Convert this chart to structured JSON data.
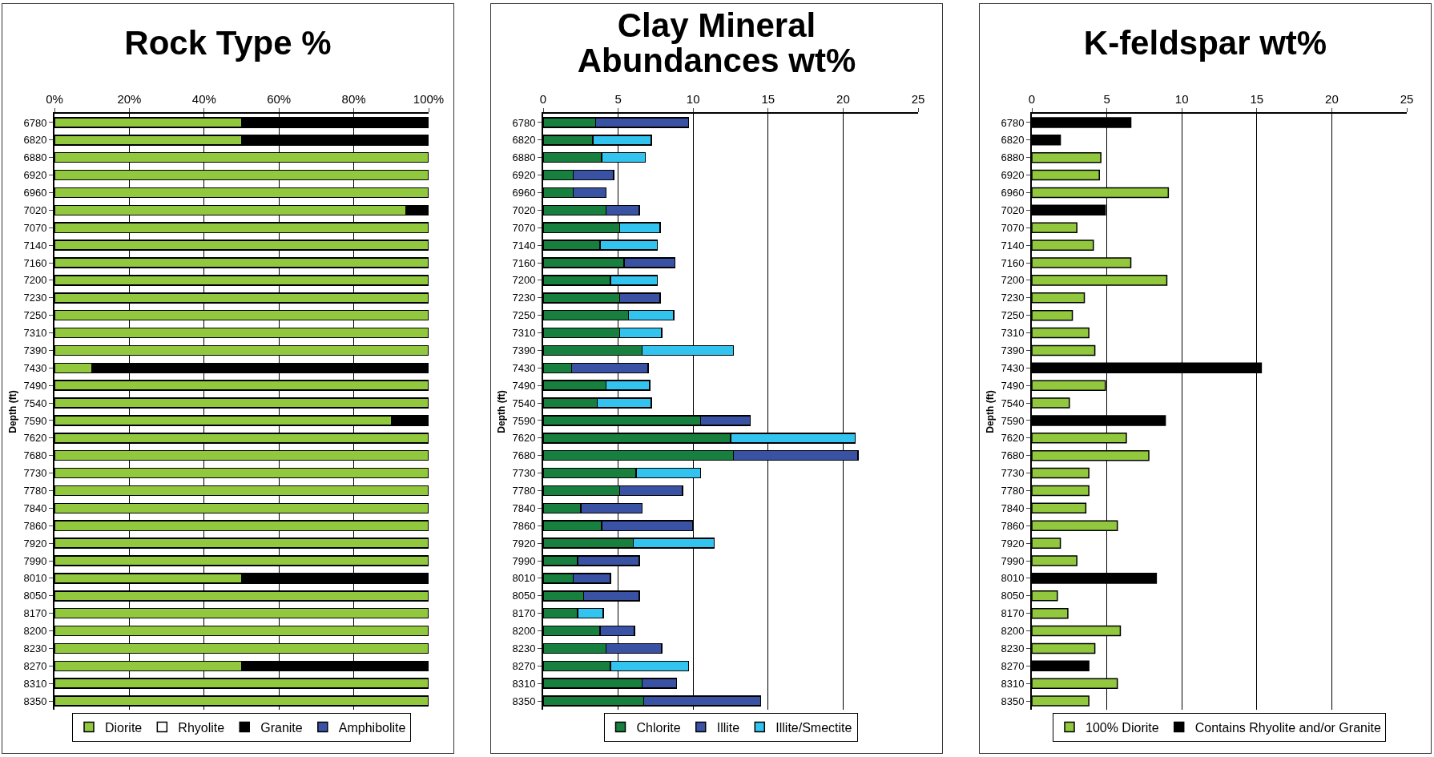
{
  "chart_data": [
    {
      "type": "bar",
      "title": "Rock Type %",
      "ylabel": "Depth (ft)",
      "orientation": "horizontal",
      "stacked": true,
      "grid": "x",
      "legend": "bottom",
      "categories": [
        "6780",
        "6820",
        "6880",
        "6920",
        "6960",
        "7020",
        "7070",
        "7140",
        "7160",
        "7200",
        "7230",
        "7250",
        "7310",
        "7390",
        "7430",
        "7490",
        "7540",
        "7590",
        "7620",
        "7680",
        "7730",
        "7780",
        "7840",
        "7860",
        "7920",
        "7990",
        "8010",
        "8050",
        "8170",
        "8200",
        "8230",
        "8270",
        "8310",
        "8350"
      ],
      "xlim": [
        0,
        100
      ],
      "xticks": [
        {
          "value": 0,
          "label": "0%"
        },
        {
          "value": 20,
          "label": "20%"
        },
        {
          "value": 40,
          "label": "40%"
        },
        {
          "value": 60,
          "label": "60%"
        },
        {
          "value": 80,
          "label": "80%"
        },
        {
          "value": 100,
          "label": "100%"
        }
      ],
      "series": [
        {
          "name": "Diorite",
          "color": "#92c83e",
          "values": [
            50,
            50,
            100,
            100,
            100,
            94,
            100,
            100,
            100,
            100,
            100,
            100,
            100,
            100,
            10,
            100,
            100,
            90,
            100,
            100,
            100,
            100,
            100,
            100,
            100,
            100,
            50,
            100,
            100,
            100,
            100,
            50,
            100,
            100
          ]
        },
        {
          "name": "Rhyolite",
          "color": "#ffffff",
          "values": [
            0,
            0,
            0,
            0,
            0,
            0,
            0,
            0,
            0,
            0,
            0,
            0,
            0,
            0,
            0,
            0,
            0,
            0,
            0,
            0,
            0,
            0,
            0,
            0,
            0,
            0,
            0,
            0,
            0,
            0,
            0,
            0,
            0,
            0
          ]
        },
        {
          "name": "Granite",
          "color": "#000000",
          "values": [
            50,
            50,
            0,
            0,
            0,
            6,
            0,
            0,
            0,
            0,
            0,
            0,
            0,
            0,
            90,
            0,
            0,
            10,
            0,
            0,
            0,
            0,
            0,
            0,
            0,
            0,
            50,
            0,
            0,
            0,
            0,
            50,
            0,
            0
          ]
        },
        {
          "name": "Amphibolite",
          "color": "#3a52a4",
          "values": [
            0,
            0,
            0,
            0,
            0,
            0,
            0,
            0,
            0,
            0,
            0,
            0,
            0,
            0,
            0,
            0,
            0,
            0,
            0,
            0,
            0,
            0,
            0,
            0,
            0,
            0,
            0,
            0,
            0,
            0,
            0,
            0,
            0,
            0
          ]
        }
      ]
    },
    {
      "type": "bar",
      "title": "Clay Mineral Abundances wt%",
      "ylabel": "Depth (ft)",
      "orientation": "horizontal",
      "stacked": true,
      "grid": "x",
      "legend": "bottom",
      "categories": [
        "6780",
        "6820",
        "6880",
        "6920",
        "6960",
        "7020",
        "7070",
        "7140",
        "7160",
        "7200",
        "7230",
        "7250",
        "7310",
        "7390",
        "7430",
        "7490",
        "7540",
        "7590",
        "7620",
        "7680",
        "7730",
        "7780",
        "7840",
        "7860",
        "7920",
        "7990",
        "8010",
        "8050",
        "8170",
        "8200",
        "8230",
        "8270",
        "8310",
        "8350"
      ],
      "xlim": [
        0,
        25
      ],
      "xticks": [
        0,
        5,
        10,
        15,
        20,
        25
      ],
      "series": [
        {
          "name": "Chlorite",
          "color": "#17803e",
          "values": [
            3.5,
            3.3,
            3.9,
            2.0,
            2.0,
            4.2,
            5.1,
            3.8,
            5.4,
            4.5,
            5.1,
            5.7,
            5.1,
            6.6,
            1.9,
            4.2,
            3.6,
            10.5,
            12.5,
            12.7,
            6.2,
            5.1,
            2.5,
            3.9,
            6.0,
            2.3,
            2.0,
            2.7,
            2.3,
            3.8,
            4.2,
            4.5,
            6.6,
            6.7
          ]
        },
        {
          "name": "Illite",
          "color": "#3a52a4",
          "values": [
            6.2,
            null,
            null,
            2.7,
            2.2,
            2.2,
            null,
            null,
            3.4,
            null,
            2.7,
            null,
            null,
            null,
            5.1,
            null,
            null,
            3.3,
            null,
            8.3,
            null,
            4.2,
            4.1,
            6.1,
            null,
            4.1,
            2.5,
            3.7,
            null,
            2.3,
            3.7,
            null,
            2.3,
            7.8
          ]
        },
        {
          "name": "Illite/Smectite",
          "color": "#33c3ef",
          "values": [
            null,
            3.9,
            2.9,
            null,
            null,
            null,
            2.7,
            3.8,
            null,
            3.1,
            null,
            3.0,
            2.8,
            6.1,
            null,
            2.9,
            3.6,
            null,
            8.3,
            null,
            4.3,
            null,
            null,
            null,
            5.4,
            null,
            null,
            null,
            1.7,
            null,
            null,
            5.2,
            null,
            null
          ]
        }
      ]
    },
    {
      "type": "bar",
      "title": "K-feldspar wt%",
      "ylabel": "Depth (ft)",
      "orientation": "horizontal",
      "grid": "x",
      "legend": "bottom",
      "categories": [
        "6780",
        "6820",
        "6880",
        "6920",
        "6960",
        "7020",
        "7070",
        "7140",
        "7160",
        "7200",
        "7230",
        "7250",
        "7310",
        "7390",
        "7430",
        "7490",
        "7540",
        "7590",
        "7620",
        "7680",
        "7730",
        "7780",
        "7840",
        "7860",
        "7920",
        "7990",
        "8010",
        "8050",
        "8170",
        "8200",
        "8230",
        "8270",
        "8310",
        "8350"
      ],
      "xlim": [
        0,
        25
      ],
      "xticks": [
        0,
        5,
        10,
        15,
        20,
        25
      ],
      "series": [
        {
          "name": "100% Diorite",
          "color": "#92c83e",
          "values": [
            null,
            null,
            4.6,
            4.5,
            9.1,
            null,
            3.0,
            4.1,
            6.6,
            9.0,
            3.5,
            2.7,
            3.8,
            4.2,
            null,
            4.9,
            2.5,
            null,
            6.3,
            7.8,
            3.8,
            3.8,
            3.6,
            5.7,
            1.9,
            3.0,
            null,
            1.7,
            2.4,
            5.9,
            4.2,
            null,
            5.7,
            3.8
          ]
        },
        {
          "name": "Contains Rhyolite and/or Granite",
          "color": "#000000",
          "values": [
            6.6,
            1.9,
            null,
            null,
            null,
            4.9,
            null,
            null,
            null,
            null,
            null,
            null,
            null,
            null,
            15.3,
            null,
            null,
            8.9,
            null,
            null,
            null,
            null,
            null,
            null,
            null,
            null,
            8.3,
            null,
            null,
            null,
            null,
            3.8,
            null,
            null
          ]
        }
      ]
    }
  ]
}
